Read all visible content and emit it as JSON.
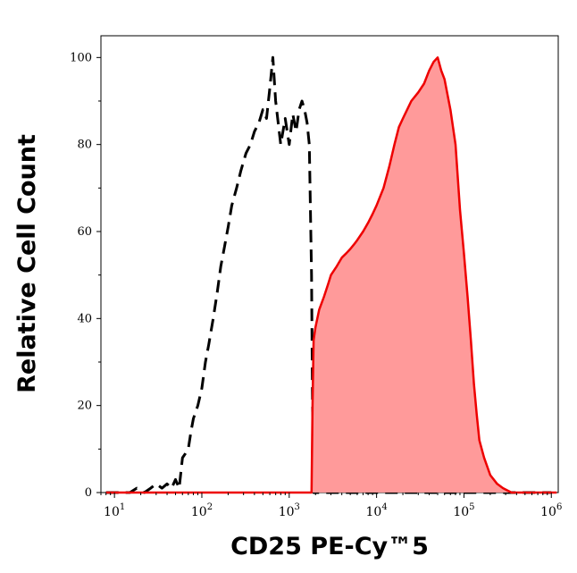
{
  "chart_data": {
    "type": "area",
    "title": "",
    "xlabel": "CD25 PE-Cy™5",
    "ylabel": "Relative Cell Count",
    "x_scale": "log",
    "xlim": [
      7,
      1200000
    ],
    "ylim": [
      0,
      105
    ],
    "x_ticks": [
      {
        "base": "10",
        "exp": "1",
        "value": 10
      },
      {
        "base": "10",
        "exp": "2",
        "value": 100
      },
      {
        "base": "10",
        "exp": "3",
        "value": 1000
      },
      {
        "base": "10",
        "exp": "4",
        "value": 10000
      },
      {
        "base": "10",
        "exp": "5",
        "value": 100000
      },
      {
        "base": "10",
        "exp": "6",
        "value": 1000000
      }
    ],
    "y_ticks": [
      {
        "label": "0",
        "value": 0
      },
      {
        "label": "20",
        "value": 20
      },
      {
        "label": "40",
        "value": 40
      },
      {
        "label": "60",
        "value": 60
      },
      {
        "label": "80",
        "value": 80
      },
      {
        "label": "100",
        "value": 100
      }
    ],
    "grid": false,
    "legend": "none",
    "series": [
      {
        "style": "dashed-outline",
        "color": "#000000",
        "points": [
          [
            8,
            0
          ],
          [
            10,
            0
          ],
          [
            12,
            0
          ],
          [
            15,
            0
          ],
          [
            18,
            1
          ],
          [
            22,
            0
          ],
          [
            26,
            1
          ],
          [
            30,
            2
          ],
          [
            35,
            1
          ],
          [
            40,
            2
          ],
          [
            45,
            1
          ],
          [
            50,
            3
          ],
          [
            55,
            1
          ],
          [
            60,
            8
          ],
          [
            65,
            9
          ],
          [
            70,
            10
          ],
          [
            75,
            14
          ],
          [
            80,
            17
          ],
          [
            90,
            20
          ],
          [
            100,
            24
          ],
          [
            110,
            30
          ],
          [
            120,
            34
          ],
          [
            135,
            40
          ],
          [
            150,
            46
          ],
          [
            165,
            52
          ],
          [
            180,
            56
          ],
          [
            200,
            61
          ],
          [
            220,
            66
          ],
          [
            250,
            70
          ],
          [
            280,
            74
          ],
          [
            320,
            78
          ],
          [
            360,
            80
          ],
          [
            400,
            83
          ],
          [
            450,
            85
          ],
          [
            500,
            88
          ],
          [
            550,
            86
          ],
          [
            600,
            93
          ],
          [
            650,
            100
          ],
          [
            700,
            90
          ],
          [
            800,
            80
          ],
          [
            900,
            86
          ],
          [
            1000,
            80
          ],
          [
            1100,
            87
          ],
          [
            1200,
            83
          ],
          [
            1300,
            88
          ],
          [
            1400,
            90
          ],
          [
            1500,
            88
          ],
          [
            1600,
            85
          ],
          [
            1700,
            80
          ],
          [
            1800,
            50
          ],
          [
            1850,
            20
          ],
          [
            1900,
            0
          ],
          [
            2500,
            0
          ],
          [
            5000,
            0
          ],
          [
            10000,
            0
          ],
          [
            30000,
            0
          ],
          [
            60000,
            0
          ],
          [
            100000,
            0
          ],
          [
            300000,
            0
          ],
          [
            1000000,
            0
          ]
        ]
      },
      {
        "style": "filled",
        "color": "#ee0000",
        "fill": "#ff9a9a",
        "points": [
          [
            8,
            0
          ],
          [
            100,
            0
          ],
          [
            1000,
            0
          ],
          [
            1800,
            0
          ],
          [
            1850,
            20
          ],
          [
            1900,
            35
          ],
          [
            2000,
            38
          ],
          [
            2200,
            42
          ],
          [
            2500,
            45
          ],
          [
            2800,
            48
          ],
          [
            3000,
            50
          ],
          [
            3500,
            52
          ],
          [
            4000,
            54
          ],
          [
            4500,
            55
          ],
          [
            5000,
            56
          ],
          [
            5500,
            57
          ],
          [
            6000,
            58
          ],
          [
            7000,
            60
          ],
          [
            8000,
            62
          ],
          [
            9000,
            64
          ],
          [
            10000,
            66
          ],
          [
            12000,
            70
          ],
          [
            14000,
            75
          ],
          [
            16000,
            80
          ],
          [
            18000,
            84
          ],
          [
            20000,
            86
          ],
          [
            25000,
            90
          ],
          [
            30000,
            92
          ],
          [
            35000,
            94
          ],
          [
            40000,
            97
          ],
          [
            45000,
            99
          ],
          [
            50000,
            100
          ],
          [
            55000,
            97
          ],
          [
            60000,
            95
          ],
          [
            70000,
            88
          ],
          [
            80000,
            80
          ],
          [
            90000,
            65
          ],
          [
            100000,
            55
          ],
          [
            110000,
            45
          ],
          [
            120000,
            35
          ],
          [
            130000,
            25
          ],
          [
            140000,
            18
          ],
          [
            150000,
            12
          ],
          [
            170000,
            8
          ],
          [
            200000,
            4
          ],
          [
            240000,
            2
          ],
          [
            280000,
            1
          ],
          [
            350000,
            0
          ],
          [
            600000,
            0
          ],
          [
            1000000,
            0
          ],
          [
            1150000,
            0
          ]
        ]
      }
    ]
  }
}
